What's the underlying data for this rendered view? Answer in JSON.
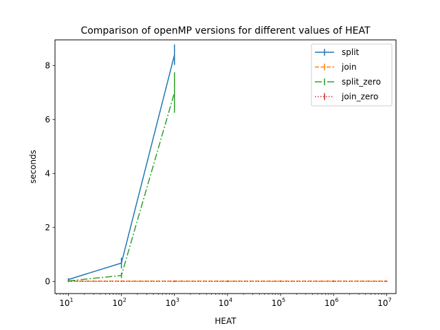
{
  "chart_data": {
    "type": "line",
    "title": "Comparison of openMP versions for different values of HEAT",
    "xlabel": "HEAT",
    "ylabel": "seconds",
    "xscale": "log",
    "xlim": [
      5.6,
      15000000
    ],
    "ylim": [
      -0.45,
      8.95
    ],
    "x_ticks": [
      {
        "base": "10",
        "exp": "1",
        "value": 10
      },
      {
        "base": "10",
        "exp": "2",
        "value": 100
      },
      {
        "base": "10",
        "exp": "3",
        "value": 1000
      },
      {
        "base": "10",
        "exp": "4",
        "value": 10000
      },
      {
        "base": "10",
        "exp": "5",
        "value": 100000
      },
      {
        "base": "10",
        "exp": "6",
        "value": 1000000
      },
      {
        "base": "10",
        "exp": "7",
        "value": 10000000
      }
    ],
    "y_ticks": [
      {
        "label": "0",
        "value": 0
      },
      {
        "label": "2",
        "value": 2
      },
      {
        "label": "4",
        "value": 4
      },
      {
        "label": "6",
        "value": 6
      },
      {
        "label": "8",
        "value": 8
      }
    ],
    "grid": false,
    "legend_position": "top-right",
    "series": [
      {
        "name": "split",
        "color": "#1f77b4",
        "dash": "",
        "x": [
          10,
          100,
          1000
        ],
        "y": [
          0.07,
          0.68,
          8.4
        ],
        "err": [
          0.05,
          0.2,
          0.38
        ]
      },
      {
        "name": "join",
        "color": "#ff7f0e",
        "dash": "6,2.5",
        "x": [
          10,
          100,
          1000,
          10000,
          100000,
          1000000,
          10000000
        ],
        "y": [
          0.01,
          0.01,
          0.01,
          0.01,
          0.01,
          0.01,
          0.01
        ],
        "err": [
          0.03,
          0.03,
          0.03,
          0.03,
          0.03,
          0.03,
          0.03
        ]
      },
      {
        "name": "split_zero",
        "color": "#2ca02c",
        "dash": "10,3,2,3",
        "x": [
          10,
          100,
          1000
        ],
        "y": [
          0.02,
          0.22,
          7.0
        ],
        "err": [
          0.03,
          0.1,
          0.75
        ]
      },
      {
        "name": "join_zero",
        "color": "#d62728",
        "dash": "1.5,2.5",
        "x": [
          10,
          100,
          1000,
          10000,
          100000,
          1000000,
          10000000
        ],
        "y": [
          0.0,
          0.0,
          0.0,
          0.0,
          0.0,
          0.0,
          0.0
        ],
        "err": [
          0.02,
          0.02,
          0.02,
          0.02,
          0.02,
          0.02,
          0.02
        ]
      }
    ]
  }
}
